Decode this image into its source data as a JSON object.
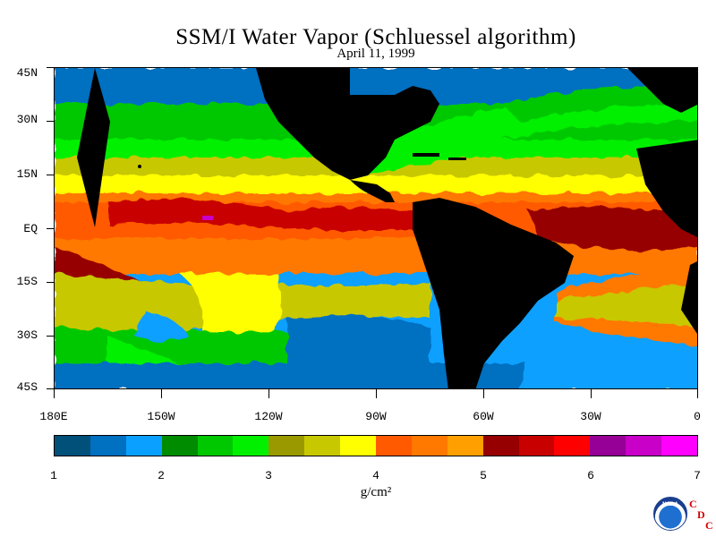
{
  "title": "SSM/I Water Vapor (Schluessel algorithm)",
  "date": "April 11, 1999",
  "units": "g/cm²",
  "lat_labels": [
    "45N",
    "30N",
    "15N",
    "EQ",
    "15S",
    "30S",
    "45S"
  ],
  "lon_labels": [
    "180E",
    "150W",
    "120W",
    "90W",
    "60W",
    "30W",
    "0"
  ],
  "colorbar": {
    "labels": [
      "1",
      "2",
      "3",
      "4",
      "5",
      "6",
      "7"
    ],
    "colors": [
      "#00507a",
      "#0070c0",
      "#0aa0ff",
      "#008c00",
      "#00c800",
      "#00f000",
      "#9a9a00",
      "#c8c800",
      "#ffff00",
      "#ff5a00",
      "#ff7800",
      "#ffa000",
      "#960000",
      "#c80000",
      "#ff0000",
      "#960096",
      "#c800c8",
      "#ff00ff"
    ],
    "min": 1,
    "max": 7
  },
  "logos": {
    "noaa": "NOAA",
    "cdc_letters": [
      "C",
      "D",
      "C"
    ]
  }
}
